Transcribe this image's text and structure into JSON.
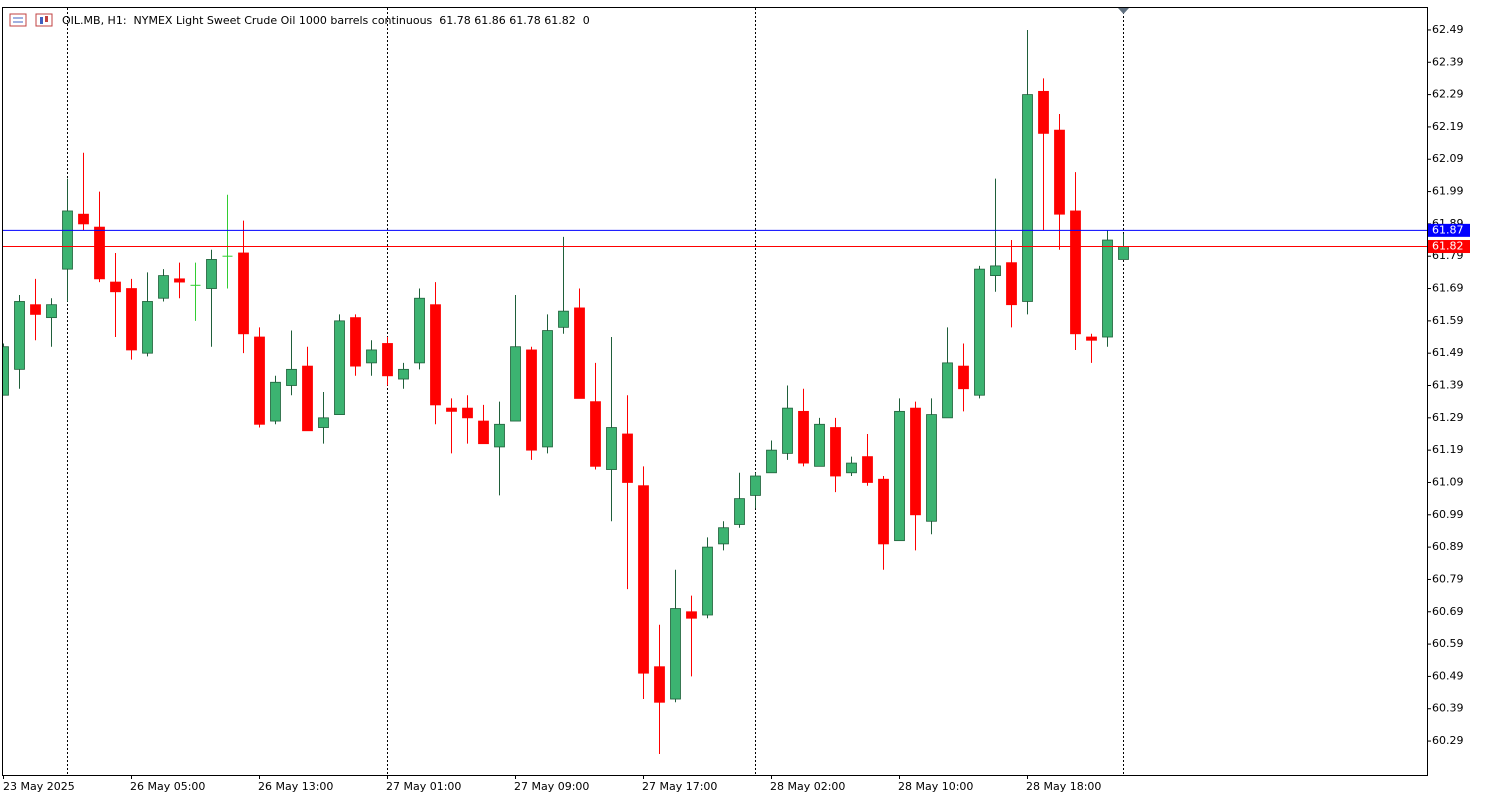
{
  "chart_data": {
    "type": "candlestick",
    "title": "OIL.MB, H1:  NYMEX Light Sweet Crude Oil 1000 barrels continuous  61.78 61.86 61.78 61.82  0",
    "categories": [
      "23 May 2025",
      null,
      null,
      null,
      null,
      null,
      null,
      null,
      "26 May 05:00",
      null,
      null,
      null,
      null,
      null,
      null,
      null,
      "26 May 13:00",
      null,
      null,
      null,
      null,
      null,
      null,
      null,
      "27 May 01:00",
      null,
      null,
      null,
      null,
      null,
      null,
      null,
      "27 May 09:00",
      null,
      null,
      null,
      null,
      null,
      null,
      null,
      "27 May 17:00",
      null,
      null,
      null,
      null,
      null,
      null,
      null,
      "28 May 02:00",
      null,
      null,
      null,
      null,
      null,
      null,
      null,
      "28 May 10:00",
      null,
      null,
      null,
      null,
      null,
      null,
      null,
      "28 May 18:00",
      null,
      null,
      null,
      null,
      null,
      null
    ],
    "open": [
      61.36,
      61.44,
      61.64,
      61.6,
      61.75,
      61.92,
      61.88,
      61.71,
      61.69,
      61.49,
      61.66,
      61.72,
      61.7,
      61.69,
      61.79,
      61.8,
      61.54,
      61.28,
      61.39,
      61.45,
      61.26,
      61.3,
      61.6,
      61.46,
      61.52,
      61.41,
      61.46,
      61.64,
      61.32,
      61.32,
      61.28,
      61.2,
      61.28,
      61.5,
      61.2,
      61.57,
      61.63,
      61.34,
      61.13,
      61.24,
      61.08,
      60.52,
      60.42,
      60.69,
      60.68,
      60.9,
      60.96,
      61.05,
      61.12,
      61.18,
      61.31,
      61.14,
      61.26,
      61.12,
      61.17,
      61.1,
      60.91,
      61.32,
      60.97,
      61.29,
      61.45,
      61.36,
      61.73,
      61.77,
      61.65,
      62.3,
      62.18,
      61.93,
      61.54,
      61.54,
      61.78
    ],
    "high": [
      61.52,
      61.67,
      61.72,
      61.66,
      62.03,
      62.11,
      61.99,
      61.8,
      61.72,
      61.74,
      61.75,
      61.77,
      61.77,
      61.81,
      61.98,
      61.9,
      61.57,
      61.42,
      61.56,
      61.51,
      61.37,
      61.61,
      61.61,
      61.53,
      61.54,
      61.46,
      61.69,
      61.71,
      61.35,
      61.36,
      61.33,
      61.34,
      61.67,
      61.51,
      61.61,
      61.85,
      61.69,
      61.46,
      61.54,
      61.36,
      61.14,
      60.65,
      60.82,
      60.74,
      60.92,
      60.97,
      61.12,
      61.12,
      61.22,
      61.39,
      61.38,
      61.29,
      61.29,
      61.17,
      61.24,
      61.11,
      61.35,
      61.34,
      61.35,
      61.57,
      61.52,
      61.76,
      62.03,
      61.84,
      62.49,
      62.34,
      62.23,
      62.05,
      61.55,
      61.87,
      61.86
    ],
    "low": [
      61.36,
      61.38,
      61.53,
      61.51,
      61.65,
      61.87,
      61.71,
      61.54,
      61.47,
      61.48,
      61.65,
      61.66,
      61.59,
      61.51,
      61.69,
      61.49,
      61.26,
      61.27,
      61.36,
      61.25,
      61.21,
      61.3,
      61.42,
      61.42,
      61.39,
      61.38,
      61.44,
      61.27,
      61.18,
      61.21,
      61.21,
      61.05,
      61.28,
      61.16,
      61.18,
      61.55,
      61.35,
      61.13,
      60.97,
      60.76,
      60.42,
      60.25,
      60.41,
      60.49,
      60.67,
      60.88,
      60.95,
      61.01,
      61.12,
      61.16,
      61.14,
      61.14,
      61.06,
      61.11,
      61.08,
      60.82,
      60.91,
      60.88,
      60.93,
      61.29,
      61.31,
      61.35,
      61.68,
      61.57,
      61.61,
      61.87,
      61.81,
      61.5,
      61.46,
      61.51,
      61.78
    ],
    "close": [
      61.51,
      61.65,
      61.61,
      61.64,
      61.93,
      61.89,
      61.72,
      61.68,
      61.5,
      61.65,
      61.73,
      61.71,
      61.7,
      61.78,
      61.79,
      61.55,
      61.27,
      61.4,
      61.44,
      61.25,
      61.29,
      61.59,
      61.45,
      61.5,
      61.42,
      61.44,
      61.66,
      61.33,
      61.31,
      61.29,
      61.21,
      61.27,
      61.51,
      61.19,
      61.56,
      61.62,
      61.35,
      61.14,
      61.26,
      61.09,
      60.5,
      60.41,
      60.7,
      60.67,
      60.89,
      60.95,
      61.04,
      61.11,
      61.19,
      61.32,
      61.15,
      61.27,
      61.11,
      61.15,
      61.09,
      60.9,
      61.31,
      60.99,
      61.3,
      61.46,
      61.38,
      61.75,
      61.76,
      61.64,
      62.29,
      62.17,
      61.92,
      61.55,
      61.53,
      61.84,
      61.82
    ],
    "up_color": "#3cb371",
    "down_color": "#ff0000",
    "doji_color": "#32cd32",
    "ylim": [
      60.185,
      62.561
    ],
    "yticks": [
      62.49,
      62.39,
      62.29,
      62.19,
      62.09,
      61.99,
      61.89,
      61.79,
      61.69,
      61.59,
      61.49,
      61.39,
      61.29,
      61.19,
      61.09,
      60.99,
      60.89,
      60.79,
      60.69,
      60.59,
      60.49,
      60.39,
      60.29
    ],
    "price_lines": [
      {
        "value": 61.87,
        "color": "#0000ff"
      },
      {
        "value": 61.82,
        "color": "#ff0000"
      }
    ]
  }
}
